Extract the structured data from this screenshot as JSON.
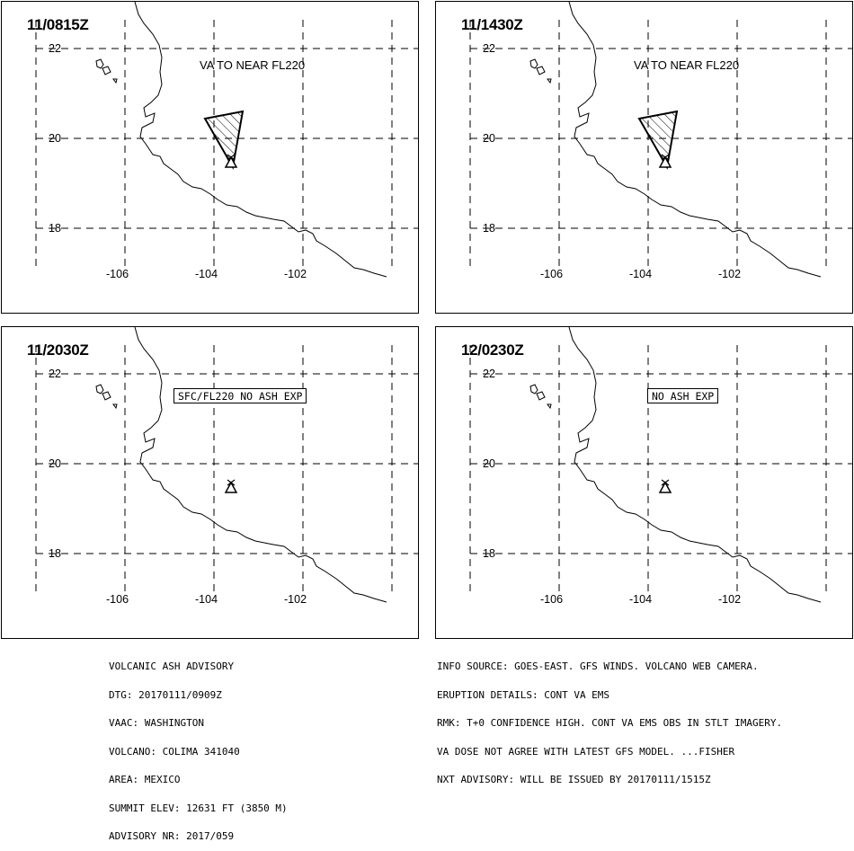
{
  "panels": [
    {
      "time": "11/0815Z",
      "label": "VA TO NEAR FL220",
      "label_boxed": false,
      "ash_cloud": true
    },
    {
      "time": "11/1430Z",
      "label": "VA TO NEAR FL220",
      "label_boxed": false,
      "ash_cloud": true
    },
    {
      "time": "11/2030Z",
      "label": "SFC/FL220 NO ASH EXP",
      "label_boxed": true,
      "ash_cloud": false
    },
    {
      "time": "12/0230Z",
      "label": "NO ASH EXP",
      "label_boxed": true,
      "ash_cloud": false
    }
  ],
  "map": {
    "lat_labels": [
      "22",
      "20",
      "18"
    ],
    "lon_labels": [
      "-106",
      "-104",
      "-102"
    ],
    "volcano_icon": "volcano-triangle-icon",
    "ash_hatch_icon": "hatched-ash-area-icon"
  },
  "advisory_left": [
    "VOLCANIC ASH ADVISORY",
    "DTG: 20170111/0909Z",
    "VAAC: WASHINGTON",
    "VOLCANO: COLIMA 341040",
    "AREA: MEXICO",
    "SUMMIT ELEV: 12631 FT (3850 M)",
    "ADVISORY NR: 2017/059"
  ],
  "advisory_right": [
    "INFO SOURCE: GOES-EAST. GFS WINDS. VOLCANO WEB CAMERA.",
    "ERUPTION DETAILS: CONT VA EMS",
    "RMK: T+0 CONFIDENCE HIGH. CONT VA EMS OBS IN STLT IMAGERY.",
    "VA DOSE NOT AGREE WITH LATEST GFS MODEL. ...FISHER",
    "NXT ADVISORY: WILL BE ISSUED BY 20170111/1515Z"
  ]
}
